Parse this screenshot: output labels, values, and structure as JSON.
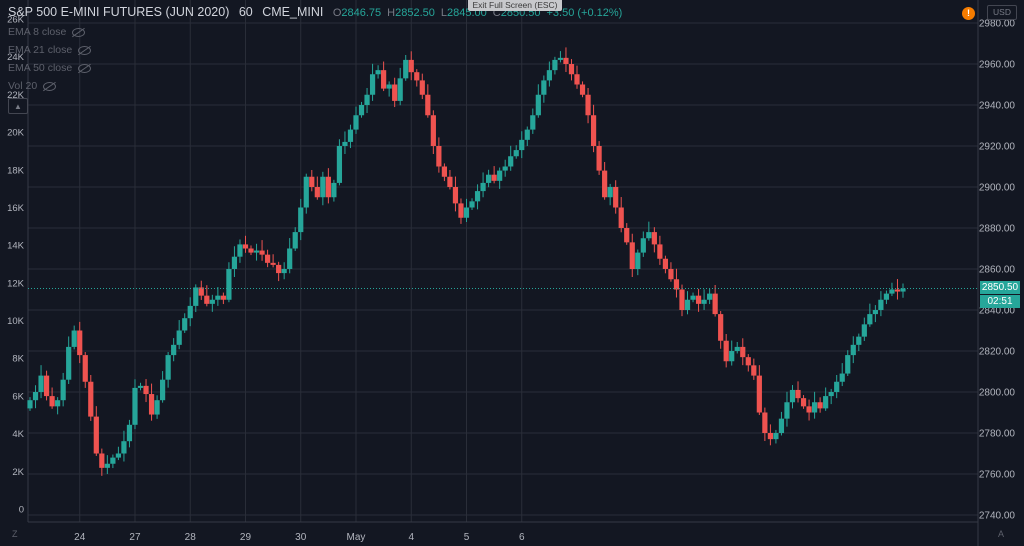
{
  "header": {
    "symbol": "S&P 500 E-MINI FUTURES (JUN 2020)",
    "interval": "60",
    "exchange": "CME_MINI",
    "open_label": "O",
    "open": "2846.75",
    "high_label": "H",
    "high": "2852.50",
    "low_label": "L",
    "low": "2845.00",
    "close_label": "C",
    "close": "2850.50",
    "change": "+3.50 (+0.12%)"
  },
  "indicators": [
    {
      "label": "EMA 8 close",
      "icon": "eye-off-icon"
    },
    {
      "label": "EMA 21 close",
      "icon": "eye-off-icon"
    },
    {
      "label": "EMA 50 close",
      "icon": "eye-off-icon"
    },
    {
      "label": "Vol 20",
      "icon": "eye-off-icon"
    }
  ],
  "exit_fullscreen": "Exit Full Screen (ESC)",
  "alert_glyph": "!",
  "currency": "USD",
  "last_price": "2850.50",
  "countdown": "02:51",
  "corner_left": "Z",
  "corner_right": "A",
  "colors": {
    "up": "#26a69a",
    "down": "#ef5350",
    "background": "#131722",
    "grid": "#2a2e39",
    "text": "#b2b5be"
  },
  "chart_data": {
    "type": "candlestick",
    "price_axis": {
      "min": 2740,
      "max": 2980,
      "ticks": [
        2980,
        2960,
        2940,
        2920,
        2900,
        2880,
        2860,
        2840,
        2820,
        2800,
        2780,
        2760,
        2740
      ]
    },
    "volume_axis": {
      "ticks": [
        "26K",
        "24K",
        "22K",
        "20K",
        "18K",
        "16K",
        "14K",
        "12K",
        "10K",
        "8K",
        "6K",
        "4K",
        "2K",
        "0"
      ]
    },
    "x_ticks": [
      {
        "label": "24",
        "bar": 9
      },
      {
        "label": "27",
        "bar": 19
      },
      {
        "label": "28",
        "bar": 29
      },
      {
        "label": "29",
        "bar": 39
      },
      {
        "label": "30",
        "bar": 49
      },
      {
        "label": "May",
        "bar": 59
      },
      {
        "label": "4",
        "bar": 69
      },
      {
        "label": "5",
        "bar": 79
      },
      {
        "label": "6",
        "bar": 89
      }
    ],
    "current_price": 2850.5,
    "series": [
      2796,
      2800,
      2808,
      2798,
      2793,
      2796,
      2806,
      2822,
      2830,
      2818,
      2805,
      2788,
      2770,
      2763,
      2765,
      2768,
      2770,
      2776,
      2784,
      2802,
      2803,
      2799,
      2789,
      2796,
      2806,
      2818,
      2823,
      2830,
      2836,
      2842,
      2851,
      2847,
      2843,
      2845,
      2847,
      2845,
      2860,
      2866,
      2872,
      2870,
      2868,
      2869,
      2867,
      2863,
      2862,
      2858,
      2860,
      2870,
      2878,
      2890,
      2905,
      2900,
      2895,
      2905,
      2895,
      2902,
      2920,
      2922,
      2928,
      2935,
      2940,
      2945,
      2955,
      2957,
      2948,
      2950,
      2942,
      2953,
      2962,
      2956,
      2952,
      2945,
      2935,
      2920,
      2910,
      2905,
      2900,
      2892,
      2885,
      2890,
      2893,
      2898,
      2902,
      2906,
      2903,
      2908,
      2910,
      2915,
      2918,
      2923,
      2928,
      2935,
      2945,
      2952,
      2957,
      2962,
      2963,
      2960,
      2955,
      2950,
      2945,
      2935,
      2920,
      2908,
      2895,
      2900,
      2890,
      2880,
      2873,
      2860,
      2868,
      2875,
      2878,
      2872,
      2865,
      2860,
      2855,
      2850,
      2840,
      2845,
      2847,
      2843,
      2845,
      2848,
      2838,
      2825,
      2815,
      2820,
      2822,
      2817,
      2813,
      2808,
      2790,
      2780,
      2777,
      2780,
      2787,
      2795,
      2801,
      2797,
      2793,
      2790,
      2795,
      2792,
      2798,
      2800,
      2805,
      2809,
      2818,
      2823,
      2827,
      2833,
      2838,
      2840,
      2845,
      2848,
      2850,
      2849,
      2850.5
    ]
  }
}
